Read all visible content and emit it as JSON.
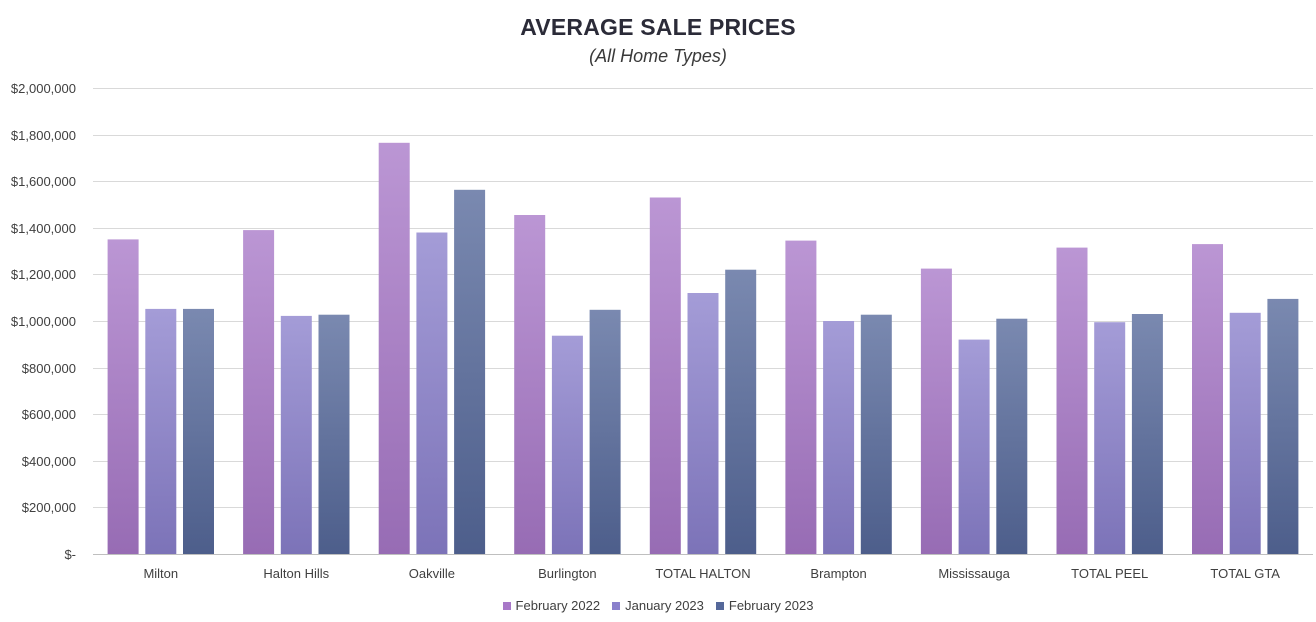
{
  "chart_data": {
    "type": "bar",
    "title": "AVERAGE SALE PRICES",
    "subtitle": "(All Home Types)",
    "categories": [
      "Milton",
      "Halton Hills",
      "Oakville",
      "Burlington",
      "TOTAL HALTON",
      "Brampton",
      "Mississauga",
      "TOTAL PEEL",
      "TOTAL GTA"
    ],
    "series": [
      {
        "name": "February 2022",
        "color": "#a878c8",
        "values": [
          1350000,
          1390000,
          1765000,
          1455000,
          1530000,
          1345000,
          1225000,
          1315000,
          1330000
        ]
      },
      {
        "name": "January 2023",
        "color": "#8a80cc",
        "values": [
          1052000,
          1022000,
          1380000,
          937000,
          1120000,
          1000000,
          920000,
          995000,
          1035000
        ]
      },
      {
        "name": "February 2023",
        "color": "#55689a",
        "values": [
          1052000,
          1027000,
          1563000,
          1048000,
          1220000,
          1027000,
          1010000,
          1030000,
          1095000
        ]
      }
    ],
    "y_ticks": [
      "$-",
      "$200,000",
      "$400,000",
      "$600,000",
      "$800,000",
      "$1,000,000",
      "$1,200,000",
      "$1,400,000",
      "$1,600,000",
      "$1,800,000",
      "$2,000,000"
    ],
    "ylim": [
      0,
      2000000
    ],
    "grid": true,
    "legend_position": "bottom"
  }
}
